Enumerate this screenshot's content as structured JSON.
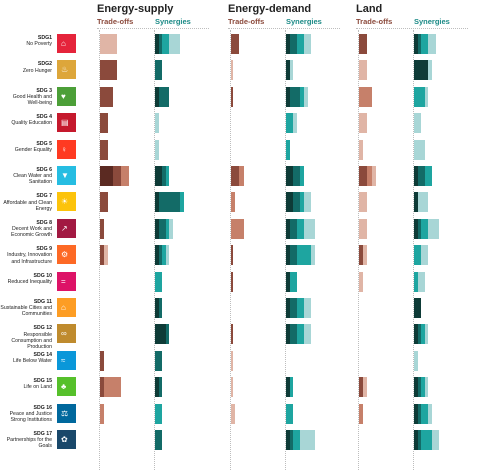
{
  "chart_data": {
    "type": "bar",
    "sections": [
      "Energy-supply",
      "Energy-demand",
      "Land"
    ],
    "column_headers": {
      "tradeoffs": "Trade-offs",
      "synergies": "Synergies"
    },
    "colors": {
      "tradeoffs": [
        "#5b2a22",
        "#8b4a3c",
        "#c6806a",
        "#e0b5a6"
      ],
      "synergies": [
        "#0e3b37",
        "#136b67",
        "#1ea5a0",
        "#a8d6d6"
      ]
    },
    "goals": [
      {
        "sdg": "SDG1",
        "name": "No Poverty",
        "icon_color": "#e5243b",
        "icon_name": "poverty-icon",
        "icon_glyph": "⌂",
        "values": {
          "Energy-supply": {
            "tradeoffs": [
              0,
              0,
              0,
              4
            ],
            "synergies": [
              1,
              1,
              2,
              3
            ]
          },
          "Energy-demand": {
            "tradeoffs": [
              0,
              2,
              0,
              0
            ],
            "synergies": [
              1,
              2,
              2,
              2
            ]
          },
          "Land": {
            "tradeoffs": [
              0,
              2,
              0,
              0
            ],
            "synergies": [
              1,
              1,
              2,
              2
            ]
          }
        }
      },
      {
        "sdg": "SDG2",
        "name": "Zero Hunger",
        "icon_color": "#dda63a",
        "icon_name": "hunger-icon",
        "icon_glyph": "♨",
        "values": {
          "Energy-supply": {
            "tradeoffs": [
              0,
              4,
              0,
              0
            ],
            "synergies": [
              0,
              2,
              0,
              0
            ]
          },
          "Energy-demand": {
            "tradeoffs": [
              0,
              0,
              0,
              0.5
            ],
            "synergies": [
              1,
              0,
              0,
              1
            ]
          },
          "Land": {
            "tradeoffs": [
              0,
              0,
              0,
              2
            ],
            "synergies": [
              4,
              0,
              0,
              1
            ]
          }
        }
      },
      {
        "sdg": "SDG 3",
        "name": "Good Health and Well-being",
        "icon_color": "#4c9f38",
        "icon_name": "health-icon",
        "icon_glyph": "♥",
        "values": {
          "Energy-supply": {
            "tradeoffs": [
              0,
              3,
              0,
              0
            ],
            "synergies": [
              1,
              3,
              0,
              0
            ]
          },
          "Energy-demand": {
            "tradeoffs": [
              0,
              0.5,
              0,
              0
            ],
            "synergies": [
              1,
              3,
              1,
              1
            ]
          },
          "Land": {
            "tradeoffs": [
              0,
              0,
              3,
              0
            ],
            "synergies": [
              0,
              0,
              3,
              1
            ]
          }
        }
      },
      {
        "sdg": "SDG 4",
        "name": "Quality Education",
        "icon_color": "#c5192d",
        "icon_name": "education-icon",
        "icon_glyph": "▤",
        "values": {
          "Energy-supply": {
            "tradeoffs": [
              0,
              2,
              0,
              0
            ],
            "synergies": [
              0,
              0,
              0,
              1
            ]
          },
          "Energy-demand": {
            "tradeoffs": [
              0,
              0,
              0,
              0
            ],
            "synergies": [
              0,
              0,
              2,
              1
            ]
          },
          "Land": {
            "tradeoffs": [
              0,
              0,
              0,
              2
            ],
            "synergies": [
              0,
              0,
              0,
              2
            ]
          }
        }
      },
      {
        "sdg": "SDG 5",
        "name": "Gender Equality",
        "icon_color": "#ff3a21",
        "icon_name": "gender-icon",
        "icon_glyph": "♀",
        "values": {
          "Energy-supply": {
            "tradeoffs": [
              0,
              2,
              0,
              0
            ],
            "synergies": [
              0,
              0,
              0,
              1
            ]
          },
          "Energy-demand": {
            "tradeoffs": [
              0,
              0,
              0,
              0
            ],
            "synergies": [
              0,
              0,
              1,
              0
            ]
          },
          "Land": {
            "tradeoffs": [
              0,
              0,
              0,
              1
            ],
            "synergies": [
              0,
              0,
              0,
              3
            ]
          }
        }
      },
      {
        "sdg": "SDG 6",
        "name": "Clean Water and Sanitation",
        "icon_color": "#26bde2",
        "icon_name": "water-icon",
        "icon_glyph": "▼",
        "values": {
          "Energy-supply": {
            "tradeoffs": [
              3,
              2,
              2,
              0
            ],
            "synergies": [
              2,
              1,
              1,
              0
            ]
          },
          "Energy-demand": {
            "tradeoffs": [
              0,
              2,
              1,
              0
            ],
            "synergies": [
              2,
              2,
              1,
              0
            ]
          },
          "Land": {
            "tradeoffs": [
              0,
              2,
              1,
              1
            ],
            "synergies": [
              1,
              2,
              2,
              0
            ]
          }
        }
      },
      {
        "sdg": "SDG 7",
        "name": "Affordable and Clean Energy",
        "icon_color": "#fcc30b",
        "icon_name": "energy-icon",
        "icon_glyph": "☀",
        "values": {
          "Energy-supply": {
            "tradeoffs": [
              0,
              2,
              0,
              0
            ],
            "synergies": [
              1,
              6,
              1,
              0
            ]
          },
          "Energy-demand": {
            "tradeoffs": [
              0,
              0,
              1,
              0
            ],
            "synergies": [
              2,
              2,
              1,
              2
            ]
          },
          "Land": {
            "tradeoffs": [
              0,
              0,
              0,
              2
            ],
            "synergies": [
              1,
              0,
              0,
              3
            ]
          }
        }
      },
      {
        "sdg": "SDG 8",
        "name": "Decent Work and Economic Growth",
        "icon_color": "#a21942",
        "icon_name": "growth-icon",
        "icon_glyph": "↗",
        "values": {
          "Energy-supply": {
            "tradeoffs": [
              0,
              1,
              0,
              0
            ],
            "synergies": [
              1,
              2,
              1,
              1
            ]
          },
          "Energy-demand": {
            "tradeoffs": [
              0,
              0,
              3,
              0
            ],
            "synergies": [
              1,
              2,
              2,
              3
            ]
          },
          "Land": {
            "tradeoffs": [
              0,
              0,
              0,
              2
            ],
            "synergies": [
              1,
              1,
              2,
              3
            ]
          }
        }
      },
      {
        "sdg": "SDG 9",
        "name": "Industry, Innovation and Infrastructure",
        "icon_color": "#fd6925",
        "icon_name": "industry-icon",
        "icon_glyph": "⚙",
        "values": {
          "Energy-supply": {
            "tradeoffs": [
              0,
              1,
              0,
              1
            ],
            "synergies": [
              1,
              1,
              1,
              1
            ]
          },
          "Energy-demand": {
            "tradeoffs": [
              0,
              0.5,
              0,
              0
            ],
            "synergies": [
              1,
              2,
              4,
              1
            ]
          },
          "Land": {
            "tradeoffs": [
              0,
              1,
              0,
              1
            ],
            "synergies": [
              0,
              0,
              2,
              2
            ]
          }
        }
      },
      {
        "sdg": "SDG 10",
        "name": "Reduced Inequality",
        "icon_color": "#dd1367",
        "icon_name": "equality-icon",
        "icon_glyph": "=",
        "values": {
          "Energy-supply": {
            "tradeoffs": [
              0,
              0,
              0,
              0
            ],
            "synergies": [
              0,
              0,
              2,
              0
            ]
          },
          "Energy-demand": {
            "tradeoffs": [
              0,
              0.5,
              0,
              0
            ],
            "synergies": [
              1,
              0,
              2,
              0
            ]
          },
          "Land": {
            "tradeoffs": [
              0,
              0,
              0,
              1
            ],
            "synergies": [
              0,
              0,
              1,
              2
            ]
          }
        }
      },
      {
        "sdg": "SDG 11",
        "name": "Sustainable Cities and Communities",
        "icon_color": "#fd9d24",
        "icon_name": "city-icon",
        "icon_glyph": "⌂",
        "values": {
          "Energy-supply": {
            "tradeoffs": [
              0,
              0,
              0,
              0
            ],
            "synergies": [
              1,
              1,
              0,
              0
            ]
          },
          "Energy-demand": {
            "tradeoffs": [
              0,
              0,
              0,
              0
            ],
            "synergies": [
              1,
              2,
              2,
              2
            ]
          },
          "Land": {
            "tradeoffs": [
              0,
              0,
              0,
              0
            ],
            "synergies": [
              2,
              0,
              0,
              0
            ]
          }
        }
      },
      {
        "sdg": "SDG 12",
        "name": "Responsible Consumption and Production",
        "icon_color": "#bf8b2e",
        "icon_name": "consumption-icon",
        "icon_glyph": "∞",
        "values": {
          "Energy-supply": {
            "tradeoffs": [
              0,
              0,
              0,
              0
            ],
            "synergies": [
              3,
              1,
              0,
              0
            ]
          },
          "Energy-demand": {
            "tradeoffs": [
              0,
              0.5,
              0,
              0
            ],
            "synergies": [
              1,
              2,
              2,
              2
            ]
          },
          "Land": {
            "tradeoffs": [
              0,
              0,
              0,
              0
            ],
            "synergies": [
              1,
              1,
              1,
              1
            ]
          }
        }
      },
      {
        "sdg": "SDG 14",
        "name": "Life Below Water",
        "icon_color": "#0a97d9",
        "icon_name": "fish-icon",
        "icon_glyph": "≈",
        "values": {
          "Energy-supply": {
            "tradeoffs": [
              0,
              1,
              0,
              0
            ],
            "synergies": [
              0,
              2,
              0,
              0
            ]
          },
          "Energy-demand": {
            "tradeoffs": [
              0,
              0,
              0,
              0.5
            ],
            "synergies": [
              0,
              0,
              0,
              0
            ]
          },
          "Land": {
            "tradeoffs": [
              0,
              0,
              0,
              0
            ],
            "synergies": [
              0,
              0,
              0,
              1
            ]
          }
        }
      },
      {
        "sdg": "SDG 15",
        "name": "Life on Land",
        "icon_color": "#56c02b",
        "icon_name": "tree-icon",
        "icon_glyph": "♣",
        "values": {
          "Energy-supply": {
            "tradeoffs": [
              0,
              1,
              4,
              0
            ],
            "synergies": [
              1,
              1,
              0,
              0
            ]
          },
          "Energy-demand": {
            "tradeoffs": [
              0,
              0,
              0,
              0.5
            ],
            "synergies": [
              1,
              0,
              1,
              0
            ]
          },
          "Land": {
            "tradeoffs": [
              0,
              1,
              0,
              1
            ],
            "synergies": [
              1,
              1,
              1,
              1
            ]
          }
        }
      },
      {
        "sdg": "SDG 16",
        "name": "Peace and Justice Strong Institutions",
        "icon_color": "#00689d",
        "icon_name": "dove-icon",
        "icon_glyph": "⚖",
        "values": {
          "Energy-supply": {
            "tradeoffs": [
              0,
              0,
              1,
              0
            ],
            "synergies": [
              0,
              0,
              2,
              0
            ]
          },
          "Energy-demand": {
            "tradeoffs": [
              0,
              0,
              0,
              1
            ],
            "synergies": [
              0,
              0,
              2,
              0
            ]
          },
          "Land": {
            "tradeoffs": [
              0,
              0,
              1,
              0
            ],
            "synergies": [
              1,
              1,
              2,
              1
            ]
          }
        }
      },
      {
        "sdg": "SDG 17",
        "name": "Partnerships for the Goals",
        "icon_color": "#19486a",
        "icon_name": "partnership-icon",
        "icon_glyph": "✿",
        "values": {
          "Energy-supply": {
            "tradeoffs": [
              0,
              0,
              0,
              0
            ],
            "synergies": [
              0,
              2,
              0,
              0
            ]
          },
          "Energy-demand": {
            "tradeoffs": [
              0,
              0,
              0,
              0
            ],
            "synergies": [
              1,
              1,
              2,
              4
            ]
          },
          "Land": {
            "tradeoffs": [
              0,
              0,
              0,
              0
            ],
            "synergies": [
              1,
              1,
              3,
              2
            ]
          }
        }
      }
    ]
  }
}
